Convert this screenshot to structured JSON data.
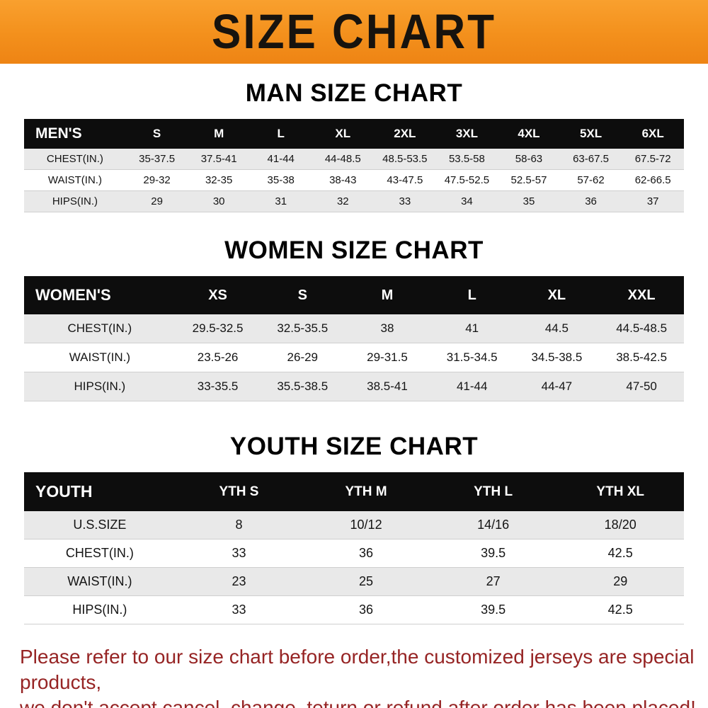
{
  "banner": {
    "title": "SIZE CHART",
    "bg_color": "#f3901c",
    "title_color": "#17130e"
  },
  "chart_data": [
    {
      "type": "table",
      "title": "MAN SIZE CHART",
      "corner_label": "MEN'S",
      "columns": [
        "MEN'S",
        "S",
        "M",
        "L",
        "XL",
        "2XL",
        "3XL",
        "4XL",
        "5XL",
        "6XL"
      ],
      "rows": [
        [
          "CHEST(IN.)",
          "35-37.5",
          "37.5-41",
          "41-44",
          "44-48.5",
          "48.5-53.5",
          "53.5-58",
          "58-63",
          "63-67.5",
          "67.5-72"
        ],
        [
          "WAIST(IN.)",
          "29-32",
          "32-35",
          "35-38",
          "38-43",
          "43-47.5",
          "47.5-52.5",
          "52.5-57",
          "57-62",
          "62-66.5"
        ],
        [
          "HIPS(IN.)",
          "29",
          "30",
          "31",
          "32",
          "33",
          "34",
          "35",
          "36",
          "37"
        ]
      ]
    },
    {
      "type": "table",
      "title": "WOMEN SIZE CHART",
      "corner_label": "WOMEN'S",
      "columns": [
        "WOMEN'S",
        "XS",
        "S",
        "M",
        "L",
        "XL",
        "XXL"
      ],
      "rows": [
        [
          "CHEST(IN.)",
          "29.5-32.5",
          "32.5-35.5",
          "38",
          "41",
          "44.5",
          "44.5-48.5"
        ],
        [
          "WAIST(IN.)",
          "23.5-26",
          "26-29",
          "29-31.5",
          "31.5-34.5",
          "34.5-38.5",
          "38.5-42.5"
        ],
        [
          "HIPS(IN.)",
          "33-35.5",
          "35.5-38.5",
          "38.5-41",
          "41-44",
          "44-47",
          "47-50"
        ]
      ]
    },
    {
      "type": "table",
      "title": "YOUTH SIZE CHART",
      "corner_label": "YOUTH",
      "columns": [
        "YOUTH",
        "YTH S",
        "YTH M",
        "YTH L",
        "YTH XL"
      ],
      "rows": [
        [
          "U.S.SIZE",
          "8",
          "10/12",
          "14/16",
          "18/20"
        ],
        [
          "CHEST(IN.)",
          "33",
          "36",
          "39.5",
          "42.5"
        ],
        [
          "WAIST(IN.)",
          "23",
          "25",
          "27",
          "29"
        ],
        [
          "HIPS(IN.)",
          "33",
          "36",
          "39.5",
          "42.5"
        ]
      ]
    }
  ],
  "footer": {
    "text_color": "#962424",
    "lines": [
      "Please refer to our size chart before order,the customized jerseys are special products,",
      "we don't accept cancel, change, teturn or refund after order has been placed!"
    ]
  }
}
